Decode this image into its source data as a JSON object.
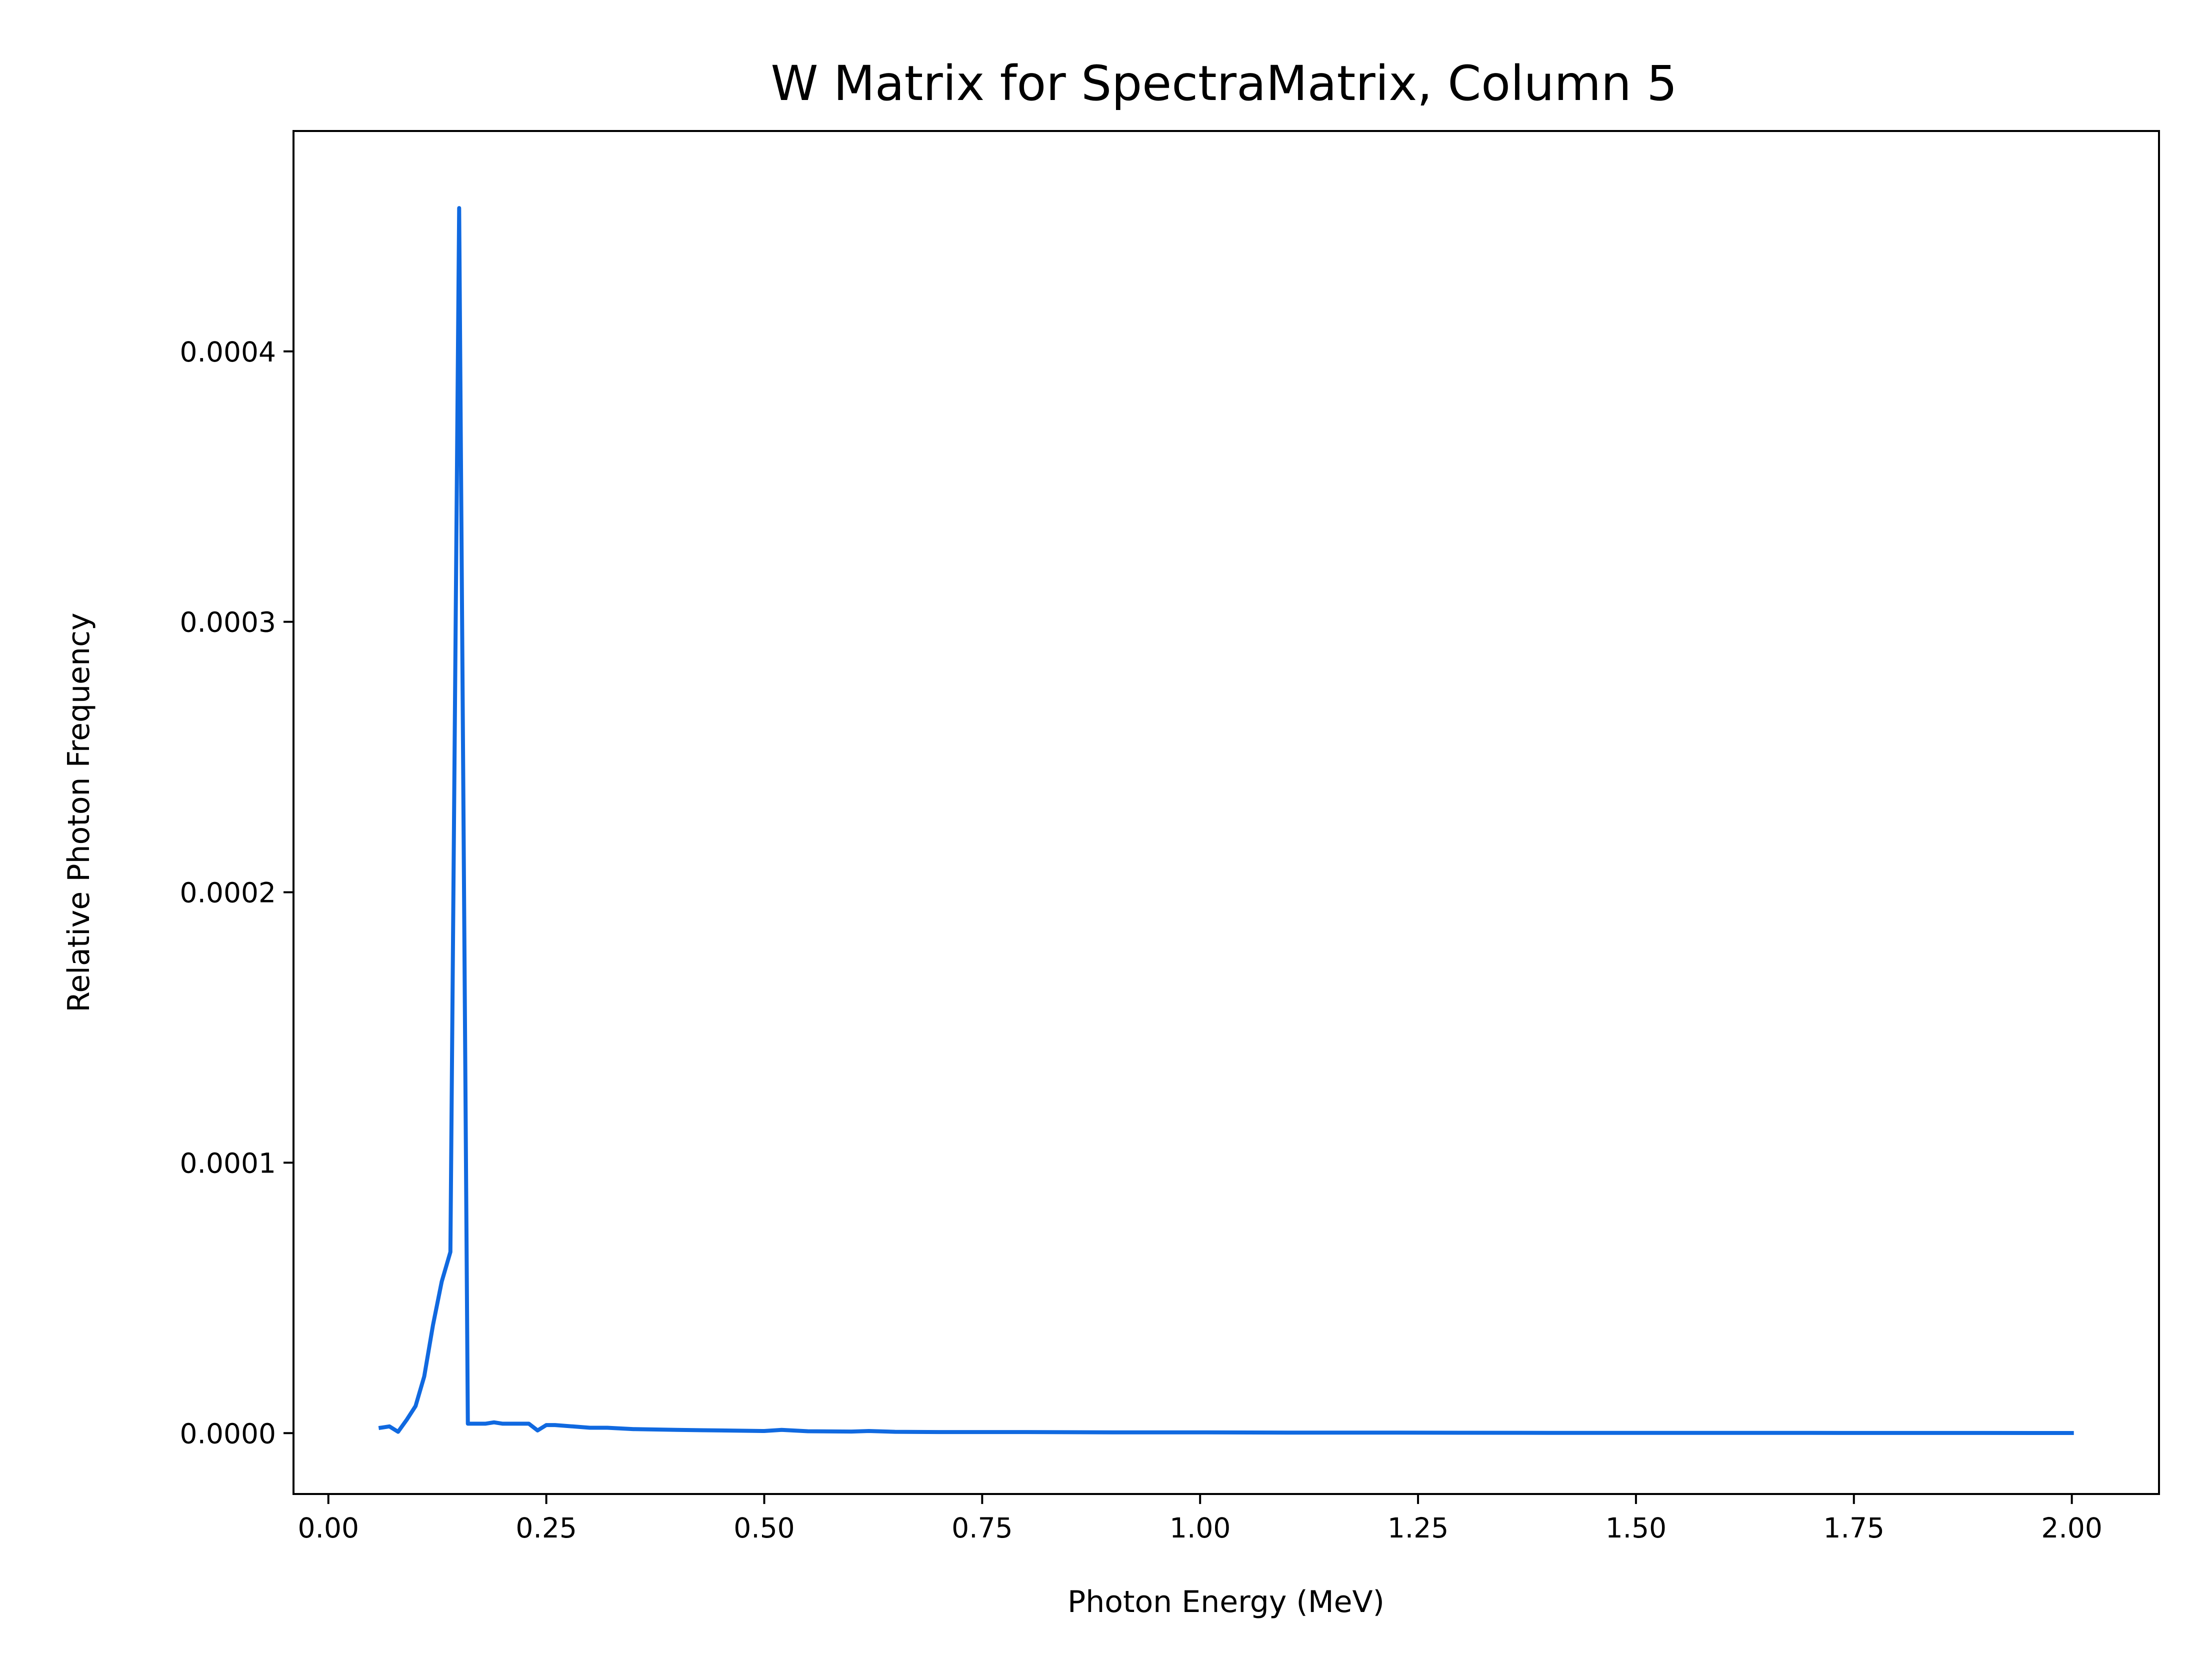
{
  "chart_data": {
    "type": "line",
    "title": "W Matrix for SpectraMatrix, Column 5",
    "xlabel": "Photon Energy (MeV)",
    "ylabel": "Relative Photon Frequency",
    "xlim": [
      -0.04,
      2.1
    ],
    "ylim": [
      -2.25e-05,
      0.0004815
    ],
    "x_ticks": [
      0.0,
      0.25,
      0.5,
      0.75,
      1.0,
      1.25,
      1.5,
      1.75,
      2.0
    ],
    "x_tick_labels": [
      "0.00",
      "0.25",
      "0.50",
      "0.75",
      "1.00",
      "1.25",
      "1.50",
      "1.75",
      "2.00"
    ],
    "y_ticks": [
      0.0,
      0.0001,
      0.0002,
      0.0003,
      0.0004
    ],
    "y_tick_labels": [
      "0.0000",
      "0.0001",
      "0.0002",
      "0.0003",
      "0.0004"
    ],
    "grid": false,
    "legend": "none",
    "series": [
      {
        "color": "#1069e0",
        "x": [
          0.06,
          0.07,
          0.08,
          0.09,
          0.1,
          0.11,
          0.12,
          0.13,
          0.14,
          0.15,
          0.16,
          0.17,
          0.18,
          0.19,
          0.2,
          0.21,
          0.22,
          0.23,
          0.24,
          0.25,
          0.26,
          0.28,
          0.3,
          0.32,
          0.35,
          0.4,
          0.45,
          0.5,
          0.52,
          0.55,
          0.6,
          0.62,
          0.65,
          0.7,
          0.8,
          0.9,
          1.0,
          1.1,
          1.2,
          1.3,
          1.4,
          1.5,
          1.6,
          1.7,
          1.8,
          1.9,
          2.0
        ],
        "y": [
          2e-06,
          2.5e-06,
          5e-07,
          5e-06,
          1e-05,
          2.1e-05,
          4e-05,
          5.6e-05,
          6.7e-05,
          0.000453,
          3.5e-06,
          3.5e-06,
          3.5e-06,
          4e-06,
          3.5e-06,
          3.5e-06,
          3.5e-06,
          3.5e-06,
          1e-06,
          3e-06,
          3e-06,
          2.5e-06,
          2e-06,
          2e-06,
          1.5e-06,
          1.2e-06,
          1e-06,
          8e-07,
          1.2e-06,
          7e-07,
          6e-07,
          8e-07,
          5e-07,
          4e-07,
          4e-07,
          3e-07,
          3e-07,
          2e-07,
          2e-07,
          1.5e-07,
          1.2e-07,
          1e-07,
          1e-07,
          1e-07,
          8e-08,
          7e-08,
          6e-08
        ]
      }
    ]
  }
}
